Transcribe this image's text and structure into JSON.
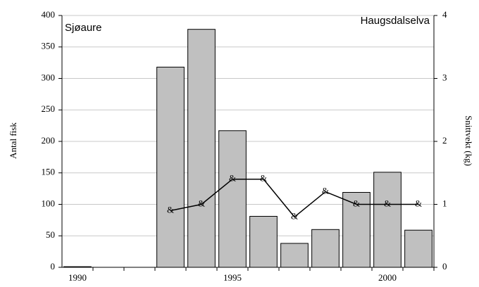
{
  "chart_data": {
    "type": "bar",
    "title_left": "Sjøaure",
    "title_right": "Haugsdalselva",
    "ylabel": "Antal fisk",
    "y2label": "Snittvekt (kg)",
    "categories": [
      "1990",
      null,
      null,
      null,
      null,
      "1995",
      null,
      null,
      null,
      null,
      "2000",
      null
    ],
    "series": [
      {
        "type": "bar",
        "color": "#c0c0c0",
        "values": [
          1,
          0,
          0,
          318,
          378,
          217,
          81,
          38,
          60,
          119,
          151,
          59
        ]
      },
      {
        "type": "line",
        "axis": "y2",
        "color": "#000000",
        "marker": "&",
        "values": [
          null,
          null,
          null,
          0.9,
          1.0,
          1.4,
          1.4,
          0.8,
          1.2,
          1.0,
          1.0,
          1.0
        ]
      }
    ],
    "ylim": [
      0,
      400
    ],
    "yticks": [
      0,
      50,
      100,
      150,
      200,
      250,
      300,
      350,
      400
    ],
    "y2lim": [
      0,
      4
    ],
    "y2ticks": [
      0,
      1,
      2,
      3,
      4
    ],
    "grid": true
  }
}
